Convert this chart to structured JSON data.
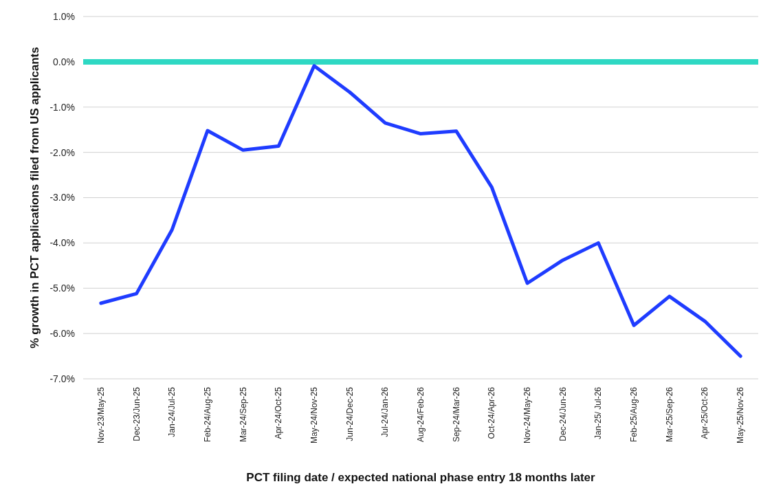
{
  "chart_data": {
    "type": "line",
    "xlabel": "PCT filing date / expected national phase entry 18 months later",
    "ylabel": "% growth in PCT applications filed from US applicants",
    "categories": [
      "Nov-23/May-25",
      "Dec-23/Jun-25",
      "Jan-24/Jul-25",
      "Feb-24/Aug-25",
      "Mar-24/Sep-25",
      "Apr-24/Oct-25",
      "May-24/Nov-25",
      "Jun-24/Dec-25",
      "Jul-24/Jan-26",
      "Aug-24/Feb-26",
      "Sep-24/Mar-26",
      "Oct-24/Apr-26",
      "Nov-24/May-26",
      "Dec-24/Jun-26",
      "Jan-25/ Jul-26",
      "Feb-25/Aug-26",
      "Mar-25/Sep-26",
      "Apr-25/Oct-26",
      "May-25/Nov-26"
    ],
    "series": [
      {
        "color": "#1f3cff",
        "values": [
          -5.33,
          -5.12,
          -3.71,
          -1.52,
          -1.95,
          -1.86,
          -0.09,
          -0.67,
          -1.35,
          -1.59,
          -1.53,
          -2.77,
          -4.89,
          -4.38,
          -4.0,
          -5.82,
          -5.18,
          -5.73,
          -6.5
        ]
      }
    ],
    "ylim": [
      -7,
      1
    ],
    "yticks": [
      {
        "value": 1,
        "label": "1.0%"
      },
      {
        "value": 0,
        "label": "0.0%"
      },
      {
        "value": -1,
        "label": "-1.0%"
      },
      {
        "value": -2,
        "label": "-2.0%"
      },
      {
        "value": -3,
        "label": "-3.0%"
      },
      {
        "value": -4,
        "label": "-4.0%"
      },
      {
        "value": -5,
        "label": "-5.0%"
      },
      {
        "value": -6,
        "label": "-6.0%"
      },
      {
        "value": -7,
        "label": "-7.0%"
      }
    ],
    "grid": "y",
    "line_style": "solid",
    "marker": "none",
    "ref_lines": [
      {
        "axis": "y",
        "value": 0,
        "color": "#2ed8c3"
      }
    ]
  }
}
